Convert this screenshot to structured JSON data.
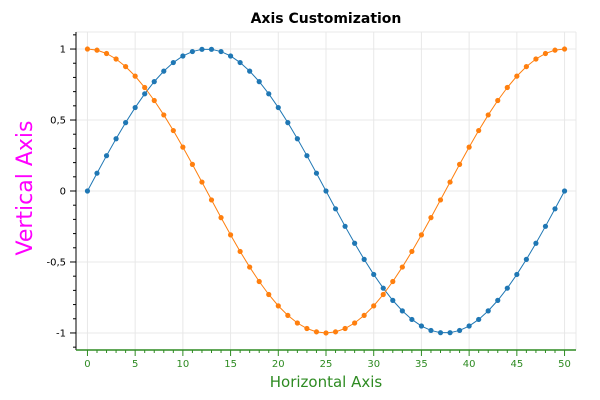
{
  "chart_data": {
    "type": "line",
    "title": "Axis Customization",
    "xlabel": "Horizontal Axis",
    "ylabel": "Vertical Axis",
    "xlim": [
      -1.2,
      51.2
    ],
    "ylim": [
      -1.12,
      1.12
    ],
    "x_ticks": [
      0,
      5,
      10,
      15,
      20,
      25,
      30,
      35,
      40,
      45,
      50
    ],
    "x_tick_labels": [
      "0",
      "5",
      "10",
      "15",
      "20",
      "25",
      "30",
      "35",
      "40",
      "45",
      "50"
    ],
    "y_ticks": [
      -1,
      -0.5,
      0,
      0.5,
      1
    ],
    "y_tick_labels": [
      "-1",
      "-0,5",
      "0",
      "0,5",
      "1"
    ],
    "grid": true,
    "x": [
      0,
      1,
      2,
      3,
      4,
      5,
      6,
      7,
      8,
      9,
      10,
      11,
      12,
      13,
      14,
      15,
      16,
      17,
      18,
      19,
      20,
      21,
      22,
      23,
      24,
      25,
      26,
      27,
      28,
      29,
      30,
      31,
      32,
      33,
      34,
      35,
      36,
      37,
      38,
      39,
      40,
      41,
      42,
      43,
      44,
      45,
      46,
      47,
      48,
      49,
      50
    ],
    "series": [
      {
        "color": "#1f77b4",
        "values": [
          0,
          0.1253,
          0.2487,
          0.3681,
          0.4818,
          0.5878,
          0.6845,
          0.7705,
          0.8443,
          0.9048,
          0.9511,
          0.9823,
          0.998,
          0.998,
          0.9823,
          0.9511,
          0.9048,
          0.8443,
          0.7705,
          0.6845,
          0.5878,
          0.4818,
          0.3681,
          0.2487,
          0.1253,
          0,
          -0.1253,
          -0.2487,
          -0.3681,
          -0.4818,
          -0.5878,
          -0.6845,
          -0.7705,
          -0.8443,
          -0.9048,
          -0.9511,
          -0.9823,
          -0.998,
          -0.998,
          -0.9823,
          -0.9511,
          -0.9048,
          -0.8443,
          -0.7705,
          -0.6845,
          -0.5878,
          -0.4818,
          -0.3681,
          -0.2487,
          -0.1253,
          0
        ]
      },
      {
        "color": "#ff7f0e",
        "values": [
          1,
          0.9921,
          0.9686,
          0.9298,
          0.8763,
          0.809,
          0.729,
          0.6374,
          0.5358,
          0.4258,
          0.309,
          0.1874,
          0.0628,
          -0.0628,
          -0.1874,
          -0.309,
          -0.4258,
          -0.5358,
          -0.6374,
          -0.729,
          -0.809,
          -0.8763,
          -0.9298,
          -0.9686,
          -0.9921,
          -1,
          -0.9921,
          -0.9686,
          -0.9298,
          -0.8763,
          -0.809,
          -0.729,
          -0.6374,
          -0.5358,
          -0.4258,
          -0.309,
          -0.1874,
          -0.0628,
          0.0628,
          0.1874,
          0.309,
          0.4258,
          0.5358,
          0.6374,
          0.729,
          0.809,
          0.8763,
          0.9298,
          0.9686,
          0.9921,
          1
        ]
      }
    ]
  },
  "colors": {
    "x_axis": "#2e8b22",
    "y_axis_label": "#ff00ff",
    "y_axis": "#000000",
    "grid": "#e8e8e8"
  }
}
